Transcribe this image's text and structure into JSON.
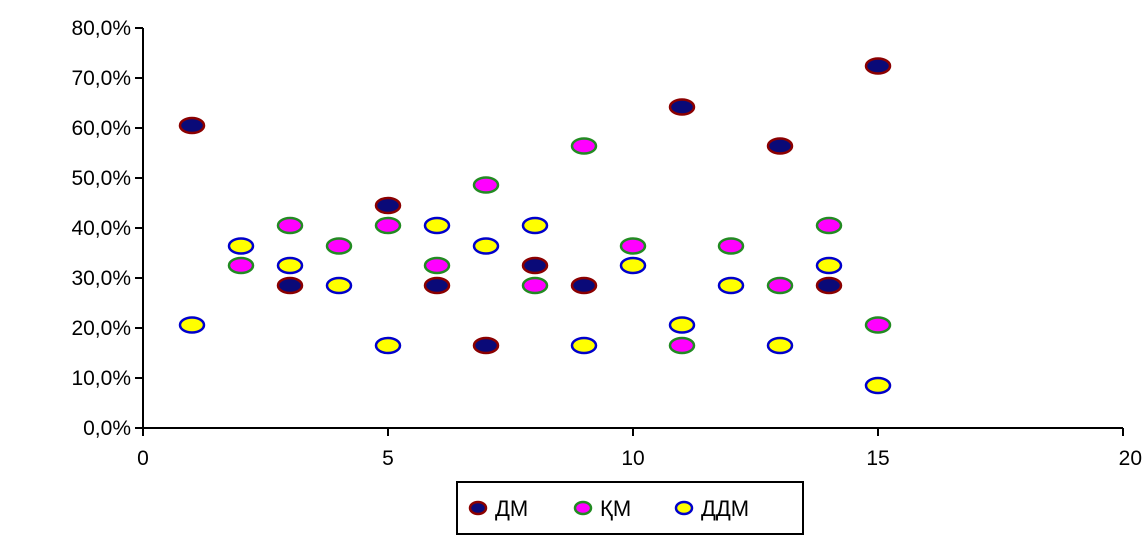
{
  "chart_data": {
    "type": "scatter",
    "xlim": [
      0,
      20
    ],
    "ylim": [
      0,
      80
    ],
    "x_ticks": [
      "0",
      "5",
      "10",
      "15",
      "20"
    ],
    "y_ticks": [
      "0,0%",
      "10,0%",
      "20,0%",
      "30,0%",
      "40,0%",
      "50,0%",
      "60,0%",
      "70,0%",
      "80,0%"
    ],
    "legend_position": "bottom",
    "grid": false,
    "series": [
      {
        "name": "ДМ",
        "fill": "#0a0a78",
        "stroke": "#8b0000",
        "points": [
          [
            1,
            60.5
          ],
          [
            3,
            28.5
          ],
          [
            5,
            44.5
          ],
          [
            6,
            28.5
          ],
          [
            7,
            16.5
          ],
          [
            8,
            32.5
          ],
          [
            9,
            28.5
          ],
          [
            11,
            64.2
          ],
          [
            13,
            56.4
          ],
          [
            14,
            28.5
          ],
          [
            15,
            72.4
          ]
        ]
      },
      {
        "name": "ҚМ",
        "fill": "#ff00ff",
        "stroke": "#228b22",
        "points": [
          [
            2,
            32.5
          ],
          [
            3,
            40.5
          ],
          [
            4,
            36.4
          ],
          [
            5,
            40.5
          ],
          [
            6,
            32.5
          ],
          [
            7,
            48.6
          ],
          [
            8,
            28.5
          ],
          [
            9,
            56.4
          ],
          [
            10,
            36.4
          ],
          [
            11,
            16.5
          ],
          [
            12,
            36.4
          ],
          [
            13,
            28.5
          ],
          [
            14,
            40.5
          ],
          [
            15,
            20.6
          ]
        ]
      },
      {
        "name": "ДДМ",
        "fill": "#ffff00",
        "stroke": "#0000cc",
        "points": [
          [
            1,
            20.6
          ],
          [
            2,
            36.4
          ],
          [
            3,
            32.5
          ],
          [
            4,
            28.5
          ],
          [
            5,
            16.5
          ],
          [
            6,
            40.5
          ],
          [
            7,
            36.4
          ],
          [
            8,
            40.5
          ],
          [
            9,
            16.5
          ],
          [
            10,
            32.5
          ],
          [
            11,
            20.6
          ],
          [
            12,
            28.5
          ],
          [
            13,
            16.5
          ],
          [
            14,
            32.5
          ],
          [
            15,
            8.5
          ]
        ]
      }
    ]
  }
}
